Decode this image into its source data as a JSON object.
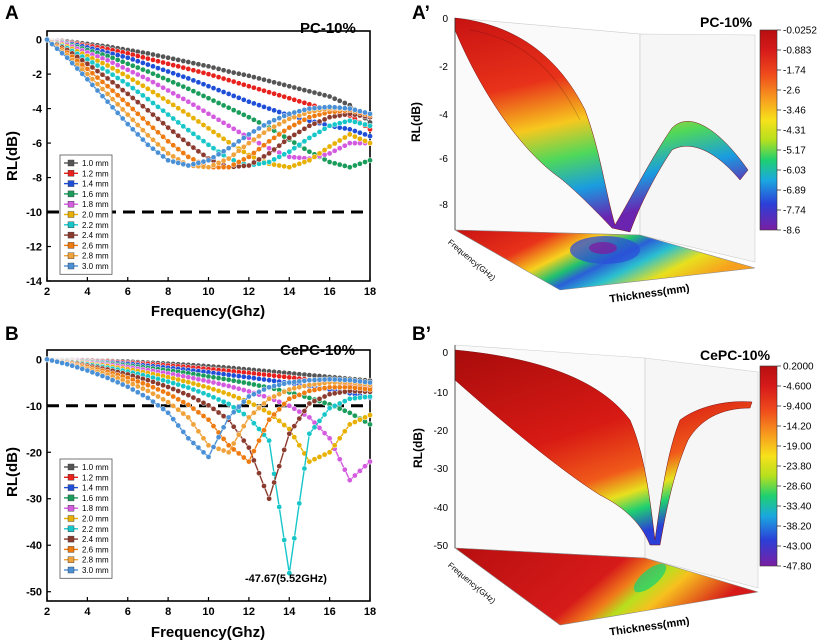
{
  "panels": {
    "A": {
      "letter": "A",
      "title": "PC-10%",
      "xlabel": "Frequency(Ghz)",
      "ylabel": "RL(dB)"
    },
    "B": {
      "letter": "B",
      "title": "CePC-10%",
      "xlabel": "Frequency(Ghz)",
      "ylabel": "RL(dB)",
      "annotation": "-47.67(5.52GHz)"
    },
    "A3d": {
      "letter": "A’",
      "title": "PC-10%",
      "zlabel": "RL(dB)",
      "xlabel": "Thickness(mm)",
      "ylabel": "Frequency(GHz)",
      "zticks": [
        "0",
        "-2",
        "-4",
        "-6",
        "-8"
      ],
      "colorbar": [
        "-0.0252",
        "-0.883",
        "-1.74",
        "-2.6",
        "-3.46",
        "-4.31",
        "-5.17",
        "-6.03",
        "-6.89",
        "-7.74",
        "-8.6"
      ]
    },
    "B3d": {
      "letter": "B’",
      "title": "CePC-10%",
      "zlabel": "RL(dB)",
      "xlabel": "Thickness(mm)",
      "ylabel": "Frequency(GHz)",
      "zticks": [
        "0",
        "-10",
        "-20",
        "-30",
        "-40",
        "-50"
      ],
      "colorbar": [
        "0.2000",
        "-4.600",
        "-9.400",
        "-14.20",
        "-19.00",
        "-23.80",
        "-28.60",
        "-33.40",
        "-38.20",
        "-43.00",
        "-47.80"
      ]
    }
  },
  "colors": {
    "series": [
      "#555555",
      "#e8211d",
      "#1f4fd8",
      "#1a9c5b",
      "#d45be0",
      "#e8b000",
      "#16c6c9",
      "#8b3a2e",
      "#ee7a10",
      "#f0a23a",
      "#4a90d6"
    ],
    "colormap": [
      "#7b1fa2",
      "#2b3fd8",
      "#1aa8e0",
      "#1fd070",
      "#b6e01e",
      "#f7e11b",
      "#f7a01e",
      "#ef4a1c",
      "#d61a1a",
      "#b80f0f"
    ]
  },
  "chart_data": [
    {
      "type": "line",
      "panel": "A",
      "title": "PC-10%",
      "xlabel": "Frequency(Ghz)",
      "ylabel": "RL(dB)",
      "xlim": [
        2,
        18
      ],
      "ylim": [
        -14,
        0.5
      ],
      "xticks": [
        2,
        4,
        6,
        8,
        10,
        12,
        14,
        16,
        18
      ],
      "yticks": [
        0,
        -2,
        -4,
        -6,
        -8,
        -10,
        -12,
        -14
      ],
      "reference_line": -10,
      "x": [
        2,
        3,
        4,
        5,
        6,
        7,
        8,
        9,
        10,
        11,
        12,
        13,
        14,
        15,
        16,
        17,
        18
      ],
      "series": [
        {
          "name": "1.0 mm",
          "values": [
            0,
            -0.1,
            -0.25,
            -0.4,
            -0.6,
            -0.8,
            -1.05,
            -1.3,
            -1.55,
            -1.85,
            -2.1,
            -2.4,
            -2.7,
            -3.0,
            -3.3,
            -3.8,
            -4.8
          ]
        },
        {
          "name": "1.2 mm",
          "values": [
            0,
            -0.15,
            -0.35,
            -0.55,
            -0.8,
            -1.1,
            -1.4,
            -1.7,
            -2.0,
            -2.35,
            -2.7,
            -3.05,
            -3.4,
            -3.75,
            -4.1,
            -4.4,
            -5.2
          ]
        },
        {
          "name": "1.4 mm",
          "values": [
            0,
            -0.2,
            -0.45,
            -0.75,
            -1.05,
            -1.45,
            -1.85,
            -2.25,
            -2.7,
            -3.15,
            -3.6,
            -4.0,
            -4.4,
            -4.7,
            -5.0,
            -5.2,
            -5.6
          ]
        },
        {
          "name": "1.6 mm",
          "values": [
            0,
            -0.25,
            -0.6,
            -0.95,
            -1.4,
            -1.85,
            -2.35,
            -2.85,
            -3.4,
            -3.95,
            -4.5,
            -5.1,
            -5.8,
            -6.5,
            -7.1,
            -7.4,
            -7.0
          ]
        },
        {
          "name": "1.8 mm",
          "values": [
            0,
            -0.3,
            -0.75,
            -1.2,
            -1.75,
            -2.3,
            -2.95,
            -3.6,
            -4.3,
            -5.0,
            -5.7,
            -6.3,
            -6.8,
            -6.9,
            -6.6,
            -6.0,
            -6.0
          ]
        },
        {
          "name": "2.0 mm",
          "values": [
            0,
            -0.4,
            -0.95,
            -1.5,
            -2.15,
            -2.85,
            -3.6,
            -4.35,
            -5.15,
            -5.95,
            -6.7,
            -7.2,
            -7.4,
            -7.0,
            -6.2,
            -5.5,
            -6.0
          ]
        },
        {
          "name": "2.2 mm",
          "values": [
            0,
            -0.5,
            -1.15,
            -1.85,
            -2.6,
            -3.45,
            -4.35,
            -5.25,
            -6.1,
            -6.9,
            -7.3,
            -7.1,
            -6.5,
            -5.7,
            -5.0,
            -4.7,
            -5.0
          ]
        },
        {
          "name": "2.4 mm",
          "values": [
            0,
            -0.6,
            -1.4,
            -2.25,
            -3.15,
            -4.1,
            -5.1,
            -6.05,
            -6.9,
            -7.4,
            -7.3,
            -6.6,
            -5.7,
            -5.0,
            -4.5,
            -4.3,
            -4.5
          ]
        },
        {
          "name": "2.6 mm",
          "values": [
            0,
            -0.75,
            -1.7,
            -2.7,
            -3.75,
            -4.85,
            -5.9,
            -6.8,
            -7.4,
            -7.4,
            -6.8,
            -5.9,
            -5.1,
            -4.5,
            -4.2,
            -4.1,
            -4.4
          ]
        },
        {
          "name": "2.8 mm",
          "values": [
            0,
            -0.9,
            -2.0,
            -3.15,
            -4.35,
            -5.55,
            -6.6,
            -7.3,
            -7.4,
            -6.9,
            -6.0,
            -5.2,
            -4.6,
            -4.2,
            -4.0,
            -4.0,
            -4.3
          ]
        },
        {
          "name": "3.0 mm",
          "values": [
            0,
            -1.05,
            -2.3,
            -3.6,
            -4.9,
            -6.1,
            -7.0,
            -7.3,
            -7.0,
            -6.3,
            -5.5,
            -4.8,
            -4.3,
            -4.0,
            -3.9,
            -4.0,
            -4.3
          ]
        }
      ]
    },
    {
      "type": "line",
      "panel": "B",
      "title": "CePC-10%",
      "xlabel": "Frequency(Ghz)",
      "ylabel": "RL(dB)",
      "xlim": [
        2,
        18
      ],
      "ylim": [
        -52,
        2
      ],
      "xticks": [
        2,
        4,
        6,
        8,
        10,
        12,
        14,
        16,
        18
      ],
      "yticks": [
        0,
        -10,
        -20,
        -30,
        -40,
        -50
      ],
      "reference_line": -10,
      "annotation": "-47.67(5.52GHz)",
      "x": [
        2,
        3,
        4,
        5,
        6,
        7,
        8,
        9,
        10,
        11,
        12,
        13,
        14,
        15,
        16,
        17,
        18
      ],
      "series": [
        {
          "name": "1.0 mm",
          "values": [
            0,
            -0.1,
            -0.2,
            -0.35,
            -0.5,
            -0.7,
            -0.95,
            -1.2,
            -1.5,
            -1.8,
            -2.2,
            -2.6,
            -3.0,
            -3.4,
            -3.8,
            -4.2,
            -4.6
          ]
        },
        {
          "name": "1.2 mm",
          "values": [
            0,
            -0.15,
            -0.3,
            -0.5,
            -0.75,
            -1.0,
            -1.35,
            -1.7,
            -2.1,
            -2.5,
            -2.95,
            -3.4,
            -3.9,
            -4.4,
            -4.9,
            -5.4,
            -6.0
          ]
        },
        {
          "name": "1.4 mm",
          "values": [
            0,
            -0.2,
            -0.45,
            -0.7,
            -1.0,
            -1.4,
            -1.85,
            -2.3,
            -2.8,
            -3.35,
            -3.9,
            -4.5,
            -5.1,
            -5.8,
            -6.5,
            -7.3,
            -8.2
          ]
        },
        {
          "name": "1.6 mm",
          "values": [
            0,
            -0.25,
            -0.55,
            -0.9,
            -1.35,
            -1.85,
            -2.4,
            -3.0,
            -3.7,
            -4.4,
            -5.2,
            -6.1,
            -7.1,
            -8.3,
            -9.7,
            -11.5,
            -14.0
          ]
        },
        {
          "name": "1.8 mm",
          "values": [
            0,
            -0.3,
            -0.7,
            -1.15,
            -1.7,
            -2.35,
            -3.05,
            -3.85,
            -4.75,
            -5.75,
            -6.9,
            -8.3,
            -10.0,
            -12.5,
            -17.0,
            -26.0,
            -22.0
          ]
        },
        {
          "name": "2.0 mm",
          "values": [
            0,
            -0.4,
            -0.9,
            -1.45,
            -2.15,
            -2.95,
            -3.85,
            -4.9,
            -6.1,
            -7.5,
            -9.2,
            -11.5,
            -15.0,
            -22.0,
            -20.0,
            -14.0,
            -12.0
          ]
        },
        {
          "name": "2.2 mm",
          "values": [
            0,
            -0.5,
            -1.1,
            -1.8,
            -2.65,
            -3.65,
            -4.8,
            -6.1,
            -7.7,
            -9.6,
            -12.5,
            -17.5,
            -46.0,
            -16.0,
            -10.5,
            -8.5,
            -8.0
          ]
        },
        {
          "name": "2.4 mm",
          "values": [
            0,
            -0.6,
            -1.35,
            -2.2,
            -3.25,
            -4.5,
            -5.95,
            -7.7,
            -9.9,
            -13.0,
            -19.0,
            -30.0,
            -16.0,
            -9.5,
            -7.5,
            -6.8,
            -7.0
          ]
        },
        {
          "name": "2.6 mm",
          "values": [
            0,
            -0.75,
            -1.65,
            -2.7,
            -4.0,
            -5.55,
            -7.4,
            -9.8,
            -13.0,
            -18.5,
            -22.0,
            -13.0,
            -8.5,
            -6.8,
            -6.0,
            -6.0,
            -6.5
          ]
        },
        {
          "name": "2.8 mm",
          "values": [
            0,
            -0.9,
            -2.0,
            -3.3,
            -4.85,
            -6.8,
            -9.2,
            -12.5,
            -18.5,
            -20.0,
            -12.5,
            -8.5,
            -6.5,
            -5.5,
            -5.0,
            -5.0,
            -5.5
          ]
        },
        {
          "name": "3.0 mm",
          "values": [
            0,
            -1.05,
            -2.4,
            -4.0,
            -5.9,
            -8.3,
            -11.5,
            -17.0,
            -21.0,
            -12.5,
            -8.0,
            -6.0,
            -5.0,
            -4.5,
            -4.3,
            -4.5,
            -5.0
          ]
        }
      ]
    },
    {
      "type": "surface",
      "panel": "A’",
      "title": "PC-10%",
      "zlabel": "RL(dB)",
      "xlabel": "Thickness(mm)",
      "ylabel": "Frequency(GHz)",
      "zlim": [
        -8.6,
        -0.0252
      ]
    },
    {
      "type": "surface",
      "panel": "B’",
      "title": "CePC-10%",
      "zlabel": "RL(dB)",
      "xlabel": "Thickness(mm)",
      "ylabel": "Frequency(GHz)",
      "zlim": [
        -47.8,
        0.2
      ]
    }
  ]
}
